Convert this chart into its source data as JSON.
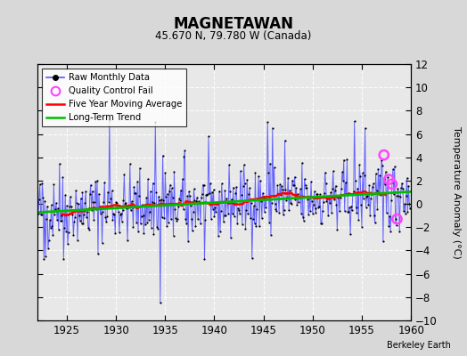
{
  "title": "MAGNETAWAN",
  "subtitle": "45.670 N, 79.780 W (Canada)",
  "ylabel": "Temperature Anomaly (°C)",
  "credit": "Berkeley Earth",
  "xlim": [
    1922.0,
    1960.0
  ],
  "ylim": [
    -10,
    12
  ],
  "yticks": [
    -10,
    -8,
    -6,
    -4,
    -2,
    0,
    2,
    4,
    6,
    8,
    10,
    12
  ],
  "xticks": [
    1925,
    1930,
    1935,
    1940,
    1945,
    1950,
    1955,
    1960
  ],
  "bg_color": "#d8d8d8",
  "plot_bg": "#e8e8e8",
  "raw_color": "#5555ff",
  "dot_color": "#000000",
  "ma_color": "#ff0000",
  "trend_color": "#00bb00",
  "qc_color": "#ff44ff",
  "seed": 42,
  "qc_years": [
    1957.25,
    1957.75,
    1958.08,
    1958.58
  ],
  "qc_vals": [
    4.2,
    2.1,
    1.7,
    -1.3
  ]
}
